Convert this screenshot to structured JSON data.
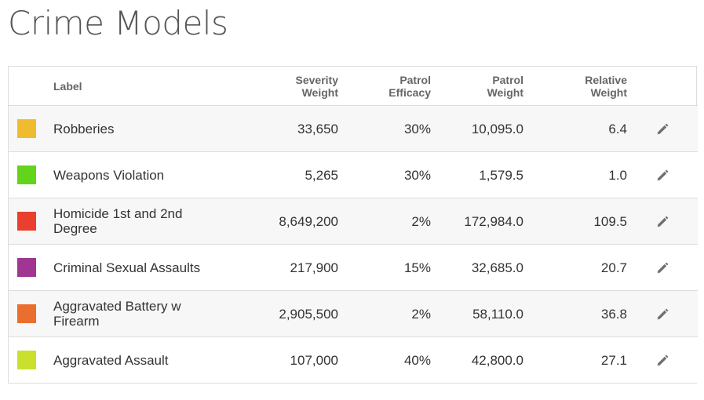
{
  "page": {
    "title": "Crime Models"
  },
  "table": {
    "headers": {
      "label": "Label",
      "severity": [
        "Severity",
        "Weight"
      ],
      "efficacy": [
        "Patrol",
        "Efficacy"
      ],
      "patrol_weight": [
        "Patrol",
        "Weight"
      ],
      "relative": [
        "Relative",
        "Weight"
      ]
    },
    "rows": [
      {
        "color": "#f0bc2f",
        "label": "Robberies",
        "severity": "33,650",
        "efficacy": "30%",
        "patrol_weight": "10,095.0",
        "relative": "6.4",
        "edit_icon": "pencil-icon"
      },
      {
        "color": "#62d41c",
        "label": "Weapons Violation",
        "severity": "5,265",
        "efficacy": "30%",
        "patrol_weight": "1,579.5",
        "relative": "1.0",
        "edit_icon": "pencil-icon"
      },
      {
        "color": "#ea3f2e",
        "label": "Homicide 1st and 2nd Degree",
        "severity": "8,649,200",
        "efficacy": "2%",
        "patrol_weight": "172,984.0",
        "relative": "109.5",
        "edit_icon": "pencil-icon"
      },
      {
        "color": "#9e3692",
        "label": "Criminal Sexual Assaults",
        "severity": "217,900",
        "efficacy": "15%",
        "patrol_weight": "32,685.0",
        "relative": "20.7",
        "edit_icon": "pencil-icon"
      },
      {
        "color": "#ea6e2d",
        "label": "Aggravated Battery w Firearm",
        "severity": "2,905,500",
        "efficacy": "2%",
        "patrol_weight": "58,110.0",
        "relative": "36.8",
        "edit_icon": "pencil-icon"
      },
      {
        "color": "#c9e02c",
        "label": "Aggravated Assault",
        "severity": "107,000",
        "efficacy": "40%",
        "patrol_weight": "42,800.0",
        "relative": "27.1",
        "edit_icon": "pencil-icon"
      }
    ]
  }
}
